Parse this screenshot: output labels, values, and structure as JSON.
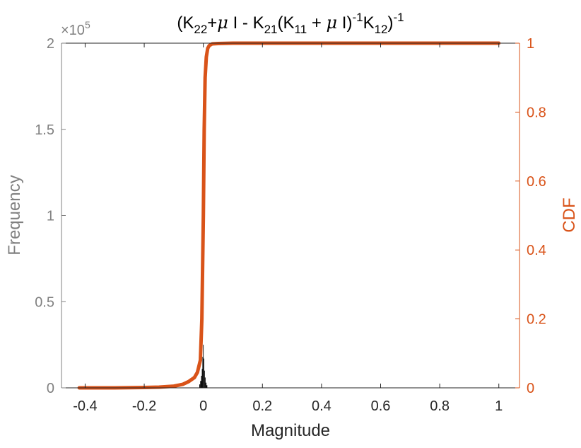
{
  "chart_data": {
    "type": "histogram",
    "title": {
      "text": "(K22+μ I - K21(K11 + μ I)-1K12)-1",
      "runs": [
        {
          "t": "(K",
          "s": "n"
        },
        {
          "t": "22",
          "s": "sub"
        },
        {
          "t": "+",
          "s": "n"
        },
        {
          "t": "μ",
          "s": "i"
        },
        {
          "t": " I - K",
          "s": "n"
        },
        {
          "t": "21",
          "s": "sub"
        },
        {
          "t": "(K",
          "s": "n"
        },
        {
          "t": "11",
          "s": "sub"
        },
        {
          "t": " + ",
          "s": "n"
        },
        {
          "t": "μ",
          "s": "i"
        },
        {
          "t": " I)",
          "s": "n"
        },
        {
          "t": "-1",
          "s": "sup"
        },
        {
          "t": "K",
          "s": "n"
        },
        {
          "t": "12",
          "s": "sub"
        },
        {
          "t": ")",
          "s": "n"
        },
        {
          "t": "-1",
          "s": "sup"
        }
      ]
    },
    "xlabel": "Magnitude",
    "ylabel_left": "Frequency",
    "ylabel_right": "CDF",
    "left_exponent_label": "×10",
    "left_exponent_power": "5",
    "xlim": [
      -0.48,
      1.07
    ],
    "ylim_left": [
      0,
      200000
    ],
    "ylim_right": [
      0,
      1
    ],
    "x_ticks": [
      -0.4,
      -0.2,
      0,
      0.2,
      0.4,
      0.6,
      0.8,
      1
    ],
    "x_tick_labels": [
      "-0.4",
      "-0.2",
      "0",
      "0.2",
      "0.4",
      "0.6",
      "0.8",
      "1"
    ],
    "y_left_ticks": [
      0,
      50000,
      100000,
      150000,
      200000
    ],
    "y_left_tick_labels": [
      "0",
      "0.5",
      "1",
      "1.5",
      "2"
    ],
    "y_right_ticks": [
      0,
      0.2,
      0.4,
      0.6,
      0.8,
      1
    ],
    "y_right_tick_labels": [
      "0",
      "0.2",
      "0.4",
      "0.6",
      "0.8",
      "1"
    ],
    "grid": false,
    "histogram": {
      "x": [
        -0.012,
        -0.009,
        -0.006,
        -0.004,
        -0.002,
        0.0,
        0.002,
        0.004,
        0.006,
        0.009,
        0.012
      ],
      "frequency": [
        2000,
        4000,
        7000,
        11000,
        18000,
        25000,
        17000,
        10000,
        6000,
        3000,
        1500
      ]
    },
    "cdf": {
      "x": [
        -0.42,
        -0.3,
        -0.2,
        -0.15,
        -0.1,
        -0.07,
        -0.05,
        -0.03,
        -0.02,
        -0.01,
        -0.005,
        0.0,
        0.003,
        0.006,
        0.01,
        0.015,
        0.02,
        0.03,
        0.05,
        0.1,
        0.5,
        1.0
      ],
      "y": [
        0.0,
        0.0,
        0.001,
        0.002,
        0.005,
        0.01,
        0.018,
        0.03,
        0.045,
        0.08,
        0.2,
        0.5,
        0.75,
        0.9,
        0.96,
        0.985,
        0.993,
        0.998,
        0.999,
        1.0,
        1.0,
        1.0
      ]
    },
    "colors": {
      "left_axis": "#808080",
      "right_axis": "#D95319",
      "histogram": "#000000",
      "cdf_line": "#D95319",
      "axes_box": "#262626"
    }
  }
}
